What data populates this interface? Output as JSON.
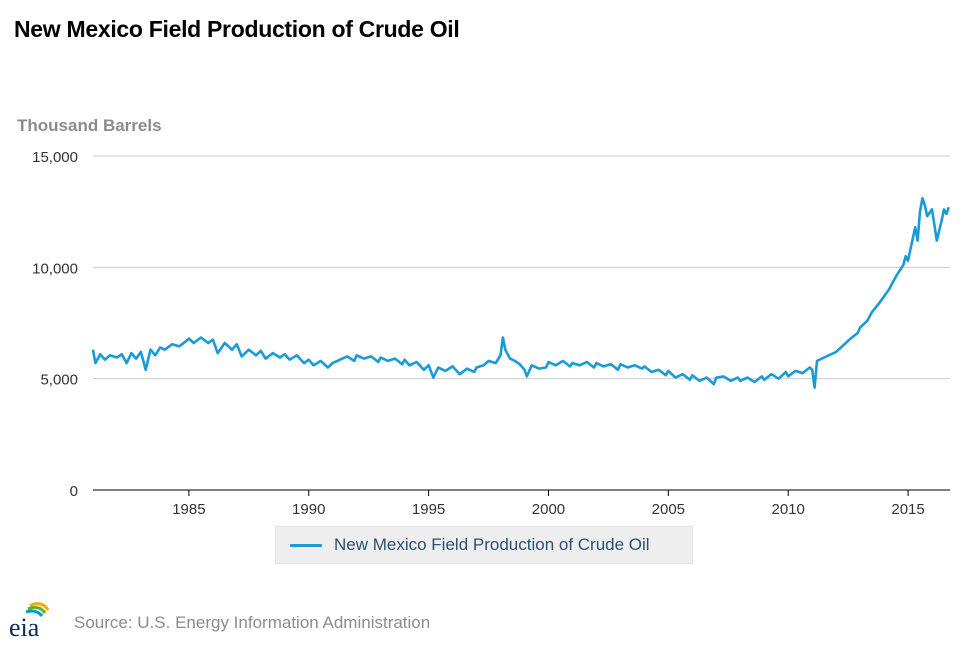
{
  "title": "New Mexico Field Production of Crude Oil",
  "y_unit_label": "Thousand Barrels",
  "legend": {
    "label": "New Mexico Field Production of Crude Oil"
  },
  "source": "Source: U.S. Energy Information Administration",
  "logo": {
    "text": "eia",
    "icon": "eia-logo-icon"
  },
  "colors": {
    "series": "#1a9ad6",
    "grid": "#cccccc",
    "axis": "#000000",
    "title": "#000000",
    "muted": "#8c8c8c"
  },
  "chart_data": {
    "type": "line",
    "title": "New Mexico Field Production of Crude Oil",
    "ylabel": "Thousand Barrels",
    "xlabel": "",
    "xlim": [
      1981,
      2016.75
    ],
    "ylim": [
      0,
      15000
    ],
    "xticks": [
      1985,
      1990,
      1995,
      2000,
      2005,
      2010,
      2015
    ],
    "xtick_labels": [
      "1985",
      "1990",
      "1995",
      "2000",
      "2005",
      "2010",
      "2015"
    ],
    "yticks": [
      0,
      5000,
      10000,
      15000
    ],
    "ytick_labels": [
      "0",
      "5,000",
      "10,000",
      "15,000"
    ],
    "grid": true,
    "legend_position": "bottom",
    "series": [
      {
        "name": "New Mexico Field Production of Crude Oil",
        "color": "#1a9ad6",
        "points": [
          [
            1981.0,
            6300
          ],
          [
            1981.1,
            5700
          ],
          [
            1981.3,
            6100
          ],
          [
            1981.5,
            5850
          ],
          [
            1981.7,
            6050
          ],
          [
            1982.0,
            5950
          ],
          [
            1982.2,
            6100
          ],
          [
            1982.4,
            5700
          ],
          [
            1982.6,
            6150
          ],
          [
            1982.8,
            5900
          ],
          [
            1983.0,
            6200
          ],
          [
            1983.2,
            5400
          ],
          [
            1983.4,
            6300
          ],
          [
            1983.6,
            6050
          ],
          [
            1983.8,
            6400
          ],
          [
            1984.0,
            6300
          ],
          [
            1984.3,
            6550
          ],
          [
            1984.6,
            6450
          ],
          [
            1984.9,
            6700
          ],
          [
            1985.0,
            6800
          ],
          [
            1985.2,
            6600
          ],
          [
            1985.5,
            6850
          ],
          [
            1985.8,
            6600
          ],
          [
            1986.0,
            6750
          ],
          [
            1986.2,
            6150
          ],
          [
            1986.5,
            6600
          ],
          [
            1986.8,
            6300
          ],
          [
            1987.0,
            6550
          ],
          [
            1987.2,
            6000
          ],
          [
            1987.5,
            6300
          ],
          [
            1987.8,
            6050
          ],
          [
            1988.0,
            6250
          ],
          [
            1988.2,
            5900
          ],
          [
            1988.5,
            6150
          ],
          [
            1988.8,
            5950
          ],
          [
            1989.0,
            6100
          ],
          [
            1989.2,
            5850
          ],
          [
            1989.5,
            6050
          ],
          [
            1989.8,
            5700
          ],
          [
            1990.0,
            5850
          ],
          [
            1990.2,
            5600
          ],
          [
            1990.5,
            5800
          ],
          [
            1990.8,
            5500
          ],
          [
            1991.0,
            5700
          ],
          [
            1991.3,
            5850
          ],
          [
            1991.6,
            6000
          ],
          [
            1991.9,
            5800
          ],
          [
            1992.0,
            6050
          ],
          [
            1992.3,
            5900
          ],
          [
            1992.6,
            6000
          ],
          [
            1992.9,
            5750
          ],
          [
            1993.0,
            5950
          ],
          [
            1993.3,
            5800
          ],
          [
            1993.6,
            5900
          ],
          [
            1993.9,
            5650
          ],
          [
            1994.0,
            5850
          ],
          [
            1994.2,
            5600
          ],
          [
            1994.5,
            5750
          ],
          [
            1994.8,
            5400
          ],
          [
            1995.0,
            5600
          ],
          [
            1995.2,
            5050
          ],
          [
            1995.4,
            5500
          ],
          [
            1995.7,
            5350
          ],
          [
            1996.0,
            5550
          ],
          [
            1996.3,
            5200
          ],
          [
            1996.6,
            5450
          ],
          [
            1996.9,
            5300
          ],
          [
            1997.0,
            5500
          ],
          [
            1997.3,
            5600
          ],
          [
            1997.5,
            5800
          ],
          [
            1997.8,
            5700
          ],
          [
            1998.0,
            6050
          ],
          [
            1998.1,
            6850
          ],
          [
            1998.2,
            6300
          ],
          [
            1998.4,
            5900
          ],
          [
            1998.6,
            5800
          ],
          [
            1998.8,
            5650
          ],
          [
            1999.0,
            5400
          ],
          [
            1999.1,
            5100
          ],
          [
            1999.3,
            5600
          ],
          [
            1999.6,
            5450
          ],
          [
            1999.9,
            5500
          ],
          [
            2000.0,
            5750
          ],
          [
            2000.3,
            5600
          ],
          [
            2000.6,
            5800
          ],
          [
            2000.9,
            5550
          ],
          [
            2001.0,
            5700
          ],
          [
            2001.3,
            5600
          ],
          [
            2001.6,
            5750
          ],
          [
            2001.9,
            5500
          ],
          [
            2002.0,
            5700
          ],
          [
            2002.3,
            5550
          ],
          [
            2002.6,
            5650
          ],
          [
            2002.9,
            5400
          ],
          [
            2003.0,
            5650
          ],
          [
            2003.3,
            5500
          ],
          [
            2003.6,
            5600
          ],
          [
            2003.9,
            5450
          ],
          [
            2004.0,
            5550
          ],
          [
            2004.3,
            5300
          ],
          [
            2004.6,
            5400
          ],
          [
            2004.9,
            5150
          ],
          [
            2005.0,
            5350
          ],
          [
            2005.3,
            5050
          ],
          [
            2005.6,
            5200
          ],
          [
            2005.9,
            4950
          ],
          [
            2006.0,
            5150
          ],
          [
            2006.3,
            4900
          ],
          [
            2006.6,
            5050
          ],
          [
            2006.9,
            4750
          ],
          [
            2007.0,
            5050
          ],
          [
            2007.3,
            5100
          ],
          [
            2007.6,
            4900
          ],
          [
            2007.9,
            5050
          ],
          [
            2008.0,
            4900
          ],
          [
            2008.3,
            5050
          ],
          [
            2008.6,
            4850
          ],
          [
            2008.9,
            5100
          ],
          [
            2009.0,
            4950
          ],
          [
            2009.3,
            5200
          ],
          [
            2009.6,
            5000
          ],
          [
            2009.9,
            5300
          ],
          [
            2010.0,
            5100
          ],
          [
            2010.3,
            5350
          ],
          [
            2010.6,
            5250
          ],
          [
            2010.9,
            5500
          ],
          [
            2011.0,
            5400
          ],
          [
            2011.1,
            4600
          ],
          [
            2011.2,
            5800
          ],
          [
            2011.5,
            5950
          ],
          [
            2011.8,
            6100
          ],
          [
            2012.0,
            6200
          ],
          [
            2012.3,
            6500
          ],
          [
            2012.6,
            6800
          ],
          [
            2012.9,
            7050
          ],
          [
            2013.0,
            7300
          ],
          [
            2013.3,
            7600
          ],
          [
            2013.5,
            8000
          ],
          [
            2013.8,
            8400
          ],
          [
            2014.0,
            8700
          ],
          [
            2014.2,
            9000
          ],
          [
            2014.5,
            9600
          ],
          [
            2014.8,
            10100
          ],
          [
            2014.9,
            10500
          ],
          [
            2015.0,
            10300
          ],
          [
            2015.2,
            11300
          ],
          [
            2015.3,
            11800
          ],
          [
            2015.4,
            11200
          ],
          [
            2015.5,
            12500
          ],
          [
            2015.6,
            13100
          ],
          [
            2015.7,
            12800
          ],
          [
            2015.8,
            12300
          ],
          [
            2016.0,
            12600
          ],
          [
            2016.2,
            11200
          ],
          [
            2016.4,
            12100
          ],
          [
            2016.5,
            12600
          ],
          [
            2016.6,
            12400
          ],
          [
            2016.7,
            12700
          ]
        ]
      }
    ]
  }
}
